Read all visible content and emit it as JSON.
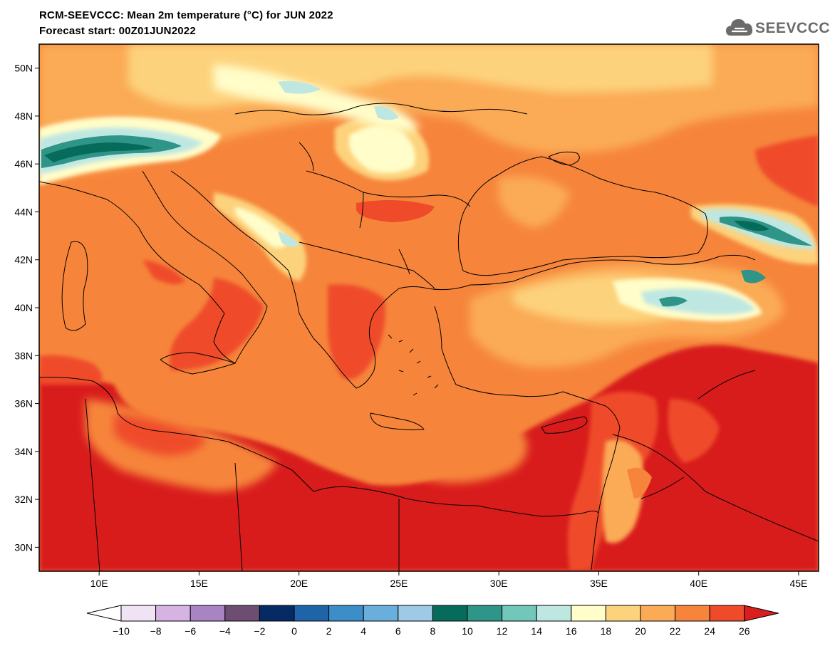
{
  "header": {
    "title_line1": "RCM-SEEVCCC: Mean 2m temperature (°C) for JUN 2022",
    "title_line2": "Forecast start: 00Z01JUN2022",
    "logo_text": "SEEVCCC"
  },
  "map": {
    "lon_range": [
      7,
      46
    ],
    "lat_range": [
      29,
      51
    ],
    "lat_ticks": [
      {
        "value": 30,
        "label": "30N"
      },
      {
        "value": 32,
        "label": "32N"
      },
      {
        "value": 34,
        "label": "34N"
      },
      {
        "value": 36,
        "label": "36N"
      },
      {
        "value": 38,
        "label": "38N"
      },
      {
        "value": 40,
        "label": "40N"
      },
      {
        "value": 42,
        "label": "42N"
      },
      {
        "value": 44,
        "label": "44N"
      },
      {
        "value": 46,
        "label": "46N"
      },
      {
        "value": 48,
        "label": "48N"
      },
      {
        "value": 50,
        "label": "50N"
      }
    ],
    "lon_ticks": [
      {
        "value": 10,
        "label": "10E"
      },
      {
        "value": 15,
        "label": "15E"
      },
      {
        "value": 20,
        "label": "20E"
      },
      {
        "value": 25,
        "label": "25E"
      },
      {
        "value": 30,
        "label": "30E"
      },
      {
        "value": 35,
        "label": "35E"
      },
      {
        "value": 40,
        "label": "40E"
      },
      {
        "value": 45,
        "label": "45E"
      }
    ]
  },
  "legend": {
    "labels": [
      "-10",
      "-8",
      "-6",
      "-4",
      "-2",
      "0",
      "2",
      "4",
      "6",
      "8",
      "10",
      "12",
      "14",
      "16",
      "18",
      "20",
      "22",
      "24",
      "26"
    ],
    "colors": [
      "#ffffff",
      "#efe3f4",
      "#d7b3e3",
      "#a884c2",
      "#6e4d73",
      "#062a64",
      "#1f64a8",
      "#3b8ec8",
      "#6aaedb",
      "#9ecae6",
      "#066b5a",
      "#2e9588",
      "#72c7bb",
      "#bfe7e2",
      "#fffdc9",
      "#fdd27c",
      "#fbaa55",
      "#f6853b",
      "#ef4b2b",
      "#d81e1e"
    ]
  }
}
